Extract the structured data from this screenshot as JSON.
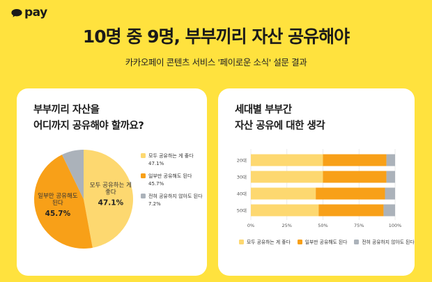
{
  "logo": {
    "text": "pay"
  },
  "title": "10명 중 9명, 부부끼리 자산 공유해야",
  "subtitle": "카카오페이 콘텐츠 서비스 '페이로운 소식' 설문 결과",
  "colors": {
    "background": "#FFE23E",
    "agree_all": "#FDD870",
    "agree_some": "#F8A018",
    "disagree": "#ABB2BA"
  },
  "left_card": {
    "heading_line1": "부부끼리 자산을",
    "heading_line2": "어디까지 공유해야 할까요?"
  },
  "right_card": {
    "heading_line1": "세대별 부부간",
    "heading_line2": "자산 공유에 대한 생각"
  },
  "chart_data": [
    {
      "type": "pie",
      "categories": [
        "모두 공유하는 게 좋다",
        "일부만 공유해도 된다",
        "전혀 공유하지 않아도 된다"
      ],
      "values": [
        47.1,
        45.7,
        7.2
      ],
      "value_labels": [
        "47.1%",
        "45.7%",
        "7.2%"
      ],
      "slice_label_lines": [
        [
          "모두 공유하는 게",
          "좋다"
        ],
        [
          "일부만 공유해도",
          "된다"
        ],
        []
      ],
      "legend": [
        {
          "label": "모두 공유하는 게 좋다",
          "value": "47.1%"
        },
        {
          "label": "일부만 공유해도 된다",
          "value": "45.7%"
        },
        {
          "label": "전혀 공유하지 않아도 된다",
          "value": "7.2%"
        }
      ],
      "legend_position": "right"
    },
    {
      "type": "bar",
      "orientation": "horizontal",
      "stacked": true,
      "categories": [
        "20대",
        "30대",
        "40대",
        "50대"
      ],
      "series": [
        {
          "name": "모두 공유하는 게 좋다",
          "values": [
            50,
            50,
            45,
            47
          ]
        },
        {
          "name": "일부만 공유해도 된다",
          "values": [
            44,
            44,
            48,
            45
          ]
        },
        {
          "name": "전혀 공유하지 않아도 된다",
          "values": [
            6,
            6,
            7,
            8
          ]
        }
      ],
      "xlim": [
        0,
        100
      ],
      "x_ticks": [
        "0%",
        "25%",
        "50%",
        "75%",
        "100%"
      ],
      "grid": true,
      "legend_position": "bottom"
    }
  ]
}
